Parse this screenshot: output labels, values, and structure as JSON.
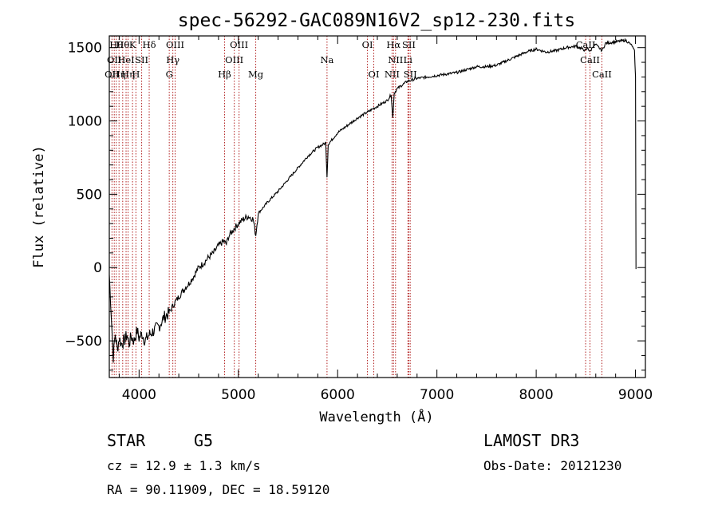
{
  "chart_data": {
    "type": "line",
    "title": "spec-56292-GAC089N16V2_sp12-230.fits",
    "xlabel": "Wavelength (Å)",
    "ylabel": "Flux (relative)",
    "xlim": [
      3700,
      9100
    ],
    "ylim": [
      -750,
      1580
    ],
    "x_ticks": [
      4000,
      5000,
      6000,
      7000,
      8000,
      9000
    ],
    "y_ticks": [
      -500,
      0,
      500,
      1000,
      1500
    ],
    "series": [
      {
        "name": "flux",
        "points": [
          [
            3700,
            -50
          ],
          [
            3720,
            -320
          ],
          [
            3740,
            -610
          ],
          [
            3760,
            -450
          ],
          [
            3780,
            -560
          ],
          [
            3800,
            -480
          ],
          [
            3820,
            -520
          ],
          [
            3850,
            -500
          ],
          [
            3880,
            -460
          ],
          [
            3900,
            -520
          ],
          [
            3920,
            -470
          ],
          [
            3950,
            -500
          ],
          [
            3980,
            -430
          ],
          [
            4000,
            -480
          ],
          [
            4030,
            -450
          ],
          [
            4060,
            -500
          ],
          [
            4100,
            -460
          ],
          [
            4150,
            -430
          ],
          [
            4200,
            -400
          ],
          [
            4250,
            -340
          ],
          [
            4300,
            -310
          ],
          [
            4350,
            -250
          ],
          [
            4400,
            -200
          ],
          [
            4450,
            -150
          ],
          [
            4500,
            -110
          ],
          [
            4550,
            -60
          ],
          [
            4600,
            0
          ],
          [
            4650,
            30
          ],
          [
            4700,
            70
          ],
          [
            4750,
            100
          ],
          [
            4800,
            150
          ],
          [
            4850,
            180
          ],
          [
            4880,
            160
          ],
          [
            4900,
            210
          ],
          [
            4950,
            260
          ],
          [
            5000,
            300
          ],
          [
            5050,
            330
          ],
          [
            5100,
            350
          ],
          [
            5150,
            330
          ],
          [
            5175,
            220
          ],
          [
            5200,
            370
          ],
          [
            5300,
            450
          ],
          [
            5400,
            520
          ],
          [
            5500,
            600
          ],
          [
            5600,
            680
          ],
          [
            5700,
            760
          ],
          [
            5800,
            820
          ],
          [
            5880,
            850
          ],
          [
            5893,
            620
          ],
          [
            5905,
            840
          ],
          [
            6000,
            920
          ],
          [
            6100,
            970
          ],
          [
            6200,
            1020
          ],
          [
            6300,
            1060
          ],
          [
            6400,
            1100
          ],
          [
            6500,
            1140
          ],
          [
            6540,
            1180
          ],
          [
            6555,
            1020
          ],
          [
            6570,
            1190
          ],
          [
            6600,
            1220
          ],
          [
            6700,
            1270
          ],
          [
            6800,
            1290
          ],
          [
            6900,
            1300
          ],
          [
            7000,
            1310
          ],
          [
            7100,
            1320
          ],
          [
            7200,
            1330
          ],
          [
            7300,
            1350
          ],
          [
            7400,
            1370
          ],
          [
            7500,
            1370
          ],
          [
            7600,
            1380
          ],
          [
            7700,
            1410
          ],
          [
            7800,
            1440
          ],
          [
            7900,
            1470
          ],
          [
            8000,
            1490
          ],
          [
            8100,
            1470
          ],
          [
            8200,
            1480
          ],
          [
            8300,
            1500
          ],
          [
            8400,
            1510
          ],
          [
            8498,
            1480
          ],
          [
            8520,
            1500
          ],
          [
            8542,
            1470
          ],
          [
            8570,
            1510
          ],
          [
            8600,
            1520
          ],
          [
            8662,
            1480
          ],
          [
            8700,
            1530
          ],
          [
            8800,
            1540
          ],
          [
            8900,
            1550
          ],
          [
            8960,
            1520
          ],
          [
            8990,
            1480
          ],
          [
            9000,
            1300
          ],
          [
            9005,
            -10
          ]
        ]
      }
    ],
    "lines": [
      {
        "w": 3727,
        "row": 2,
        "label": "OII"
      },
      {
        "w": 3750,
        "row": 1,
        "label": "OII"
      },
      {
        "w": 3770,
        "row": 0,
        "label": "Hθ"
      },
      {
        "w": 3798,
        "row": 2,
        "label": "Hη"
      },
      {
        "w": 3835,
        "row": 0,
        "label": "Hθ"
      },
      {
        "w": 3869,
        "row": 1,
        "label": "HeI"
      },
      {
        "w": 3889,
        "row": 2,
        "label": "Hη"
      },
      {
        "w": 3934,
        "row": 0,
        "label": "K"
      },
      {
        "w": 3968,
        "row": 2,
        "label": "H"
      },
      {
        "w": 4026,
        "row": 1,
        "label": "SII"
      },
      {
        "w": 4102,
        "row": 0,
        "label": "Hδ"
      },
      {
        "w": 4304,
        "row": 2,
        "label": "G"
      },
      {
        "w": 4340,
        "row": 1,
        "label": "Hγ"
      },
      {
        "w": 4363,
        "row": 0,
        "label": "OIII"
      },
      {
        "w": 4861,
        "row": 2,
        "label": "Hβ"
      },
      {
        "w": 4959,
        "row": 1,
        "label": "OIII"
      },
      {
        "w": 5007,
        "row": 0,
        "label": "OIII"
      },
      {
        "w": 5175,
        "row": 2,
        "label": "Mg"
      },
      {
        "w": 5893,
        "row": 1,
        "label": "Na"
      },
      {
        "w": 6300,
        "row": 0,
        "label": "OI"
      },
      {
        "w": 6364,
        "row": 2,
        "label": "OI"
      },
      {
        "w": 6548,
        "row": 2,
        "label": "NII"
      },
      {
        "w": 6563,
        "row": 0,
        "label": "Hα"
      },
      {
        "w": 6583,
        "row": 1,
        "label": "NII"
      },
      {
        "w": 6708,
        "row": 1,
        "label": "Li"
      },
      {
        "w": 6717,
        "row": 0,
        "label": "SII"
      },
      {
        "w": 6731,
        "row": 2,
        "label": "SII"
      },
      {
        "w": 8498,
        "row": 0,
        "label": "CaII"
      },
      {
        "w": 8542,
        "row": 1,
        "label": "CaII"
      },
      {
        "w": 8662,
        "row": 2,
        "label": "CaII"
      }
    ]
  },
  "footer": {
    "object_class": "STAR",
    "subclass": "G5",
    "survey": "LAMOST DR3",
    "cz": "cz = 12.9 ± 1.3 km/s",
    "obs_date": "Obs-Date: 20121230",
    "coords": "RA =  90.11909, DEC =  18.59120"
  }
}
